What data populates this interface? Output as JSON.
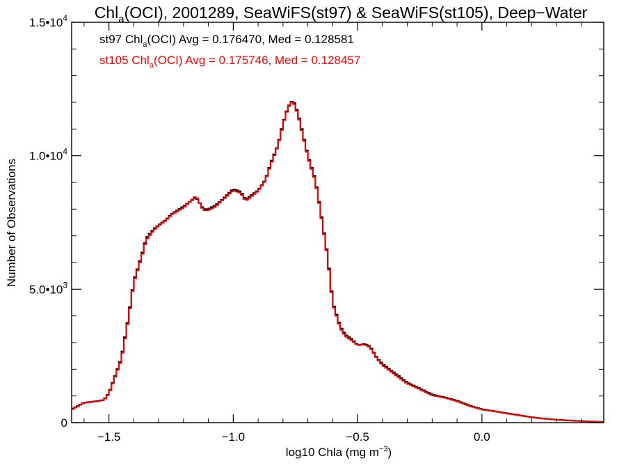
{
  "chart_data": {
    "type": "line",
    "title": {
      "pre": "Chl",
      "sub": "a",
      "post": "(OCI), 2001289, SeaWiFS(st97) & SeaWiFS(st105), Deep−Water"
    },
    "xlabel": {
      "pre": "log10 Chla (mg m",
      "sup": "−3",
      "post": ")"
    },
    "ylabel": "Number of Observations",
    "xlim": [
      -1.65,
      0.49
    ],
    "ylim": [
      0,
      15000
    ],
    "x_ticks": [
      {
        "value": -1.5,
        "label": "−1.5"
      },
      {
        "value": -1.0,
        "label": "−1.0"
      },
      {
        "value": -0.5,
        "label": "−0.5"
      },
      {
        "value": 0.0,
        "label": "0.0"
      }
    ],
    "y_ticks": [
      {
        "value": 0,
        "base": "0",
        "exp": ""
      },
      {
        "value": 5000,
        "base": "5.0•10",
        "exp": "3"
      },
      {
        "value": 10000,
        "base": "1.0•10",
        "exp": "4"
      },
      {
        "value": 15000,
        "base": "1.5•10",
        "exp": "4"
      }
    ],
    "grid": false,
    "legend_placement": "top-left",
    "series": [
      {
        "name": "st97",
        "color": "#000000",
        "annotation": {
          "pre": "st97 Chl",
          "sub": "a",
          "post": "(OCI) Avg = 0.176470, Med = 0.128581"
        },
        "x": [
          -1.65,
          -1.6,
          -1.55,
          -1.52,
          -1.5,
          -1.45,
          -1.42,
          -1.4,
          -1.37,
          -1.35,
          -1.32,
          -1.3,
          -1.27,
          -1.25,
          -1.2,
          -1.15,
          -1.12,
          -1.1,
          -1.07,
          -1.05,
          -1.0,
          -0.97,
          -0.95,
          -0.93,
          -0.9,
          -0.87,
          -0.85,
          -0.82,
          -0.8,
          -0.78,
          -0.76,
          -0.74,
          -0.72,
          -0.7,
          -0.67,
          -0.65,
          -0.62,
          -0.6,
          -0.57,
          -0.55,
          -0.52,
          -0.5,
          -0.47,
          -0.45,
          -0.42,
          -0.4,
          -0.35,
          -0.3,
          -0.25,
          -0.2,
          -0.15,
          -0.1,
          -0.05,
          0.0,
          0.05,
          0.1,
          0.15,
          0.2,
          0.25,
          0.3,
          0.35,
          0.4,
          0.45,
          0.49
        ],
        "values": [
          500,
          750,
          800,
          850,
          1100,
          2400,
          4000,
          5300,
          6200,
          6900,
          7250,
          7400,
          7600,
          7800,
          8100,
          8450,
          8000,
          8000,
          8150,
          8300,
          8750,
          8650,
          8350,
          8500,
          8700,
          9100,
          9700,
          10400,
          11200,
          11800,
          12100,
          11600,
          10800,
          10000,
          9100,
          8000,
          6200,
          4500,
          3600,
          3300,
          3100,
          2900,
          2950,
          2850,
          2400,
          2200,
          1850,
          1500,
          1280,
          1050,
          950,
          820,
          640,
          500,
          430,
          350,
          280,
          200,
          150,
          110,
          80,
          60,
          40,
          30
        ]
      },
      {
        "name": "st105",
        "color": "#ff0000",
        "annotation": {
          "pre": "st105 Chl",
          "sub": "a",
          "post": "(OCI) Avg = 0.175746, Med = 0.128457"
        },
        "x": [
          -1.65,
          -1.6,
          -1.55,
          -1.52,
          -1.5,
          -1.45,
          -1.42,
          -1.4,
          -1.37,
          -1.35,
          -1.32,
          -1.3,
          -1.27,
          -1.25,
          -1.2,
          -1.15,
          -1.12,
          -1.1,
          -1.07,
          -1.05,
          -1.0,
          -0.97,
          -0.95,
          -0.93,
          -0.9,
          -0.87,
          -0.85,
          -0.82,
          -0.8,
          -0.78,
          -0.76,
          -0.74,
          -0.72,
          -0.7,
          -0.67,
          -0.65,
          -0.62,
          -0.6,
          -0.57,
          -0.55,
          -0.52,
          -0.5,
          -0.47,
          -0.45,
          -0.42,
          -0.4,
          -0.35,
          -0.3,
          -0.25,
          -0.2,
          -0.15,
          -0.1,
          -0.05,
          0.0,
          0.05,
          0.1,
          0.15,
          0.2,
          0.25,
          0.3,
          0.35,
          0.4,
          0.45,
          0.49
        ],
        "values": [
          480,
          740,
          790,
          840,
          1080,
          2350,
          3950,
          5250,
          6150,
          6850,
          7200,
          7380,
          7580,
          7780,
          8050,
          8500,
          7950,
          7950,
          8100,
          8280,
          8700,
          8600,
          8300,
          8450,
          8680,
          9080,
          9650,
          10380,
          11150,
          11850,
          12050,
          11550,
          10750,
          9950,
          9050,
          7950,
          6150,
          4450,
          3550,
          3250,
          3050,
          2900,
          2920,
          2820,
          2380,
          2150,
          1800,
          1460,
          1250,
          1020,
          930,
          800,
          620,
          490,
          420,
          340,
          270,
          195,
          145,
          105,
          78,
          58,
          38,
          28
        ]
      }
    ]
  }
}
